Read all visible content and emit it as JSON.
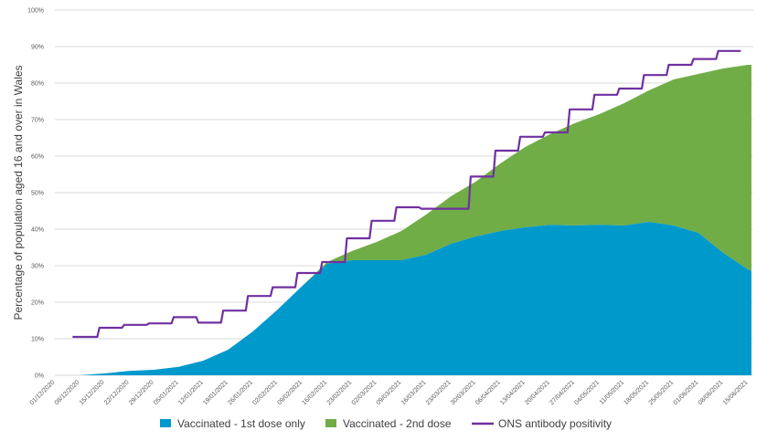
{
  "chart_data": {
    "type": "area",
    "title": "",
    "xlabel": "",
    "ylabel": "Percentage of population aged 16 and over in Wales",
    "ylim": [
      0,
      100
    ],
    "y_ticks": [
      "0%",
      "10%",
      "20%",
      "30%",
      "40%",
      "50%",
      "60%",
      "70%",
      "80%",
      "90%",
      "100%"
    ],
    "x_ticks": [
      "01/12/2020",
      "08/12/2020",
      "15/12/2020",
      "22/12/2020",
      "29/12/2020",
      "05/01/2021",
      "12/01/2021",
      "19/01/2021",
      "26/01/2021",
      "02/02/2021",
      "09/02/2021",
      "16/02/2021",
      "23/02/2021",
      "02/03/2021",
      "09/03/2021",
      "16/03/2021",
      "23/03/2021",
      "30/03/2021",
      "06/04/2021",
      "13/04/2021",
      "20/04/2021",
      "27/04/2021",
      "04/05/2021",
      "11/05/2021",
      "18/05/2021",
      "25/05/2021",
      "01/06/2021",
      "08/06/2021",
      "15/06/2021"
    ],
    "grid": true,
    "legend_position": "bottom",
    "colors": {
      "first_dose": "#0099CC",
      "second_dose": "#70AD47",
      "ons": "#7030A0",
      "grid": "#D9D9D9"
    },
    "vaccination_dates": [
      "08/12/2020",
      "15/12/2020",
      "22/12/2020",
      "29/12/2020",
      "05/01/2021",
      "12/01/2021",
      "19/01/2021",
      "26/01/2021",
      "02/02/2021",
      "09/02/2021",
      "16/02/2021",
      "23/02/2021",
      "02/03/2021",
      "09/03/2021",
      "16/03/2021",
      "23/03/2021",
      "30/03/2021",
      "06/04/2021",
      "13/04/2021",
      "20/04/2021",
      "27/04/2021",
      "04/05/2021",
      "11/05/2021",
      "18/05/2021",
      "25/05/2021",
      "01/06/2021",
      "08/06/2021",
      "15/06/2021",
      "16/06/2021"
    ],
    "series": [
      {
        "name": "Vaccinated - 1st dose only",
        "type": "area",
        "values": [
          0,
          0.5,
          1.2,
          1.5,
          2.3,
          4,
          7,
          12,
          18,
          24.5,
          30.5,
          31.5,
          31.5,
          31.5,
          33,
          36,
          38,
          39.5,
          40.5,
          41.2,
          41,
          41.2,
          41,
          42,
          41,
          39,
          33.5,
          29,
          28.5
        ]
      },
      {
        "name": "Vaccinated - 2nd dose",
        "type": "area",
        "values": [
          0,
          0,
          0,
          0,
          0,
          0,
          0,
          0,
          0,
          0,
          0.5,
          2.5,
          5,
          8,
          11,
          13,
          15,
          18.5,
          22,
          24.8,
          28,
          30.3,
          33.5,
          36,
          40,
          43.5,
          50.5,
          56,
          56.5
        ]
      },
      {
        "name": "ONS antibody positivity",
        "type": "step-line",
        "step_start_dates": [
          "06/12/2020",
          "13/12/2020",
          "20/12/2020",
          "27/12/2020",
          "03/01/2021",
          "10/01/2021",
          "17/01/2021",
          "24/01/2021",
          "31/01/2021",
          "07/02/2021",
          "14/02/2021",
          "21/02/2021",
          "28/02/2021",
          "07/03/2021",
          "14/03/2021",
          "21/03/2021",
          "28/03/2021",
          "04/04/2021",
          "11/04/2021",
          "18/04/2021",
          "25/04/2021",
          "02/05/2021",
          "09/05/2021",
          "16/05/2021",
          "23/05/2021",
          "30/05/2021",
          "06/06/2021"
        ],
        "end_date": "13/06/2021",
        "values": [
          10.5,
          13,
          13.8,
          14.2,
          15.9,
          14.4,
          17.7,
          21.7,
          24.1,
          28,
          31,
          37.5,
          42.3,
          46,
          45.6,
          45.6,
          54.4,
          61.5,
          65.3,
          66.5,
          72.8,
          76.8,
          78.5,
          82.2,
          85,
          86.6,
          88.8
        ]
      }
    ]
  }
}
